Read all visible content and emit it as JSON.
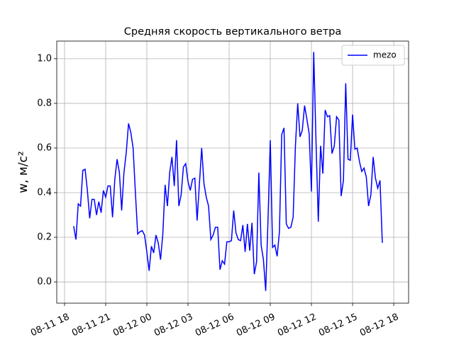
{
  "chart_data": {
    "type": "line",
    "title": "Средняя скорость вертикального ветра",
    "y_label": "w, м/с²",
    "x": [
      "08-11 18:40",
      "08-11 18:50",
      "08-11 19:00",
      "08-11 19:10",
      "08-11 19:20",
      "08-11 19:30",
      "08-11 19:40",
      "08-11 19:50",
      "08-11 20:00",
      "08-11 20:10",
      "08-11 20:20",
      "08-11 20:30",
      "08-11 20:40",
      "08-11 20:50",
      "08-11 21:00",
      "08-11 21:10",
      "08-11 21:20",
      "08-11 21:30",
      "08-11 21:40",
      "08-11 21:50",
      "08-11 22:00",
      "08-11 22:10",
      "08-11 22:20",
      "08-11 22:30",
      "08-11 22:40",
      "08-11 22:50",
      "08-11 23:00",
      "08-11 23:10",
      "08-11 23:20",
      "08-11 23:30",
      "08-11 23:40",
      "08-11 23:50",
      "08-12 00:00",
      "08-12 00:10",
      "08-12 00:20",
      "08-12 00:30",
      "08-12 00:40",
      "08-12 00:50",
      "08-12 01:00",
      "08-12 01:10",
      "08-12 01:20",
      "08-12 01:30",
      "08-12 01:40",
      "08-12 01:50",
      "08-12 02:00",
      "08-12 02:10",
      "08-12 02:20",
      "08-12 02:30",
      "08-12 02:40",
      "08-12 02:50",
      "08-12 03:00",
      "08-12 03:10",
      "08-12 03:20",
      "08-12 03:30",
      "08-12 03:40",
      "08-12 03:50",
      "08-12 04:00",
      "08-12 04:10",
      "08-12 04:20",
      "08-12 04:30",
      "08-12 04:40",
      "08-12 04:50",
      "08-12 05:00",
      "08-12 05:10",
      "08-12 05:20",
      "08-12 05:30",
      "08-12 05:40",
      "08-12 05:50",
      "08-12 06:00",
      "08-12 06:10",
      "08-12 06:20",
      "08-12 06:30",
      "08-12 06:40",
      "08-12 06:50",
      "08-12 07:00",
      "08-12 07:10",
      "08-12 07:20",
      "08-12 07:30",
      "08-12 07:40",
      "08-12 07:50",
      "08-12 08:00",
      "08-12 08:10",
      "08-12 08:20",
      "08-12 08:30",
      "08-12 08:40",
      "08-12 08:50",
      "08-12 09:00",
      "08-12 09:10",
      "08-12 09:20",
      "08-12 09:30",
      "08-12 09:40",
      "08-12 09:50",
      "08-12 10:00",
      "08-12 10:10",
      "08-12 10:20",
      "08-12 10:30",
      "08-12 10:40",
      "08-12 10:50",
      "08-12 11:00",
      "08-12 11:10",
      "08-12 11:20",
      "08-12 11:30",
      "08-12 11:40",
      "08-12 11:50",
      "08-12 12:00",
      "08-12 12:10",
      "08-12 12:20",
      "08-12 12:30",
      "08-12 12:40",
      "08-12 12:50",
      "08-12 13:00",
      "08-12 13:10",
      "08-12 13:20",
      "08-12 13:30",
      "08-12 13:40",
      "08-12 13:50",
      "08-12 14:00",
      "08-12 14:10",
      "08-12 14:20",
      "08-12 14:30",
      "08-12 14:40",
      "08-12 14:50",
      "08-12 15:00",
      "08-12 15:10",
      "08-12 15:20",
      "08-12 15:30",
      "08-12 15:40",
      "08-12 15:50",
      "08-12 16:00",
      "08-12 16:10",
      "08-12 16:20",
      "08-12 16:30",
      "08-12 16:40",
      "08-12 16:50",
      "08-12 17:00",
      "08-12 17:10"
    ],
    "series": [
      {
        "name": "mezo",
        "color": "#0000ff",
        "values": [
          0.25,
          0.19,
          0.35,
          0.34,
          0.5,
          0.505,
          0.41,
          0.285,
          0.37,
          0.37,
          0.3,
          0.36,
          0.31,
          0.41,
          0.38,
          0.43,
          0.43,
          0.29,
          0.46,
          0.55,
          0.49,
          0.32,
          0.49,
          0.58,
          0.71,
          0.67,
          0.6,
          0.4,
          0.215,
          0.225,
          0.23,
          0.21,
          0.135,
          0.05,
          0.16,
          0.13,
          0.21,
          0.175,
          0.1,
          0.215,
          0.435,
          0.34,
          0.49,
          0.56,
          0.43,
          0.635,
          0.34,
          0.39,
          0.515,
          0.53,
          0.45,
          0.41,
          0.46,
          0.465,
          0.275,
          0.44,
          0.6,
          0.44,
          0.38,
          0.34,
          0.19,
          0.21,
          0.245,
          0.245,
          0.055,
          0.095,
          0.08,
          0.18,
          0.18,
          0.185,
          0.32,
          0.22,
          0.19,
          0.185,
          0.255,
          0.135,
          0.26,
          0.14,
          0.265,
          0.035,
          0.09,
          0.49,
          0.165,
          0.1,
          -0.04,
          0.275,
          0.635,
          0.155,
          0.165,
          0.115,
          0.225,
          0.66,
          0.69,
          0.26,
          0.24,
          0.245,
          0.29,
          0.61,
          0.8,
          0.65,
          0.68,
          0.79,
          0.73,
          0.665,
          0.405,
          1.03,
          0.63,
          0.27,
          0.61,
          0.485,
          0.77,
          0.74,
          0.745,
          0.575,
          0.61,
          0.74,
          0.725,
          0.385,
          0.455,
          0.89,
          0.55,
          0.545,
          0.75,
          0.595,
          0.6,
          0.54,
          0.495,
          0.51,
          0.47,
          0.34,
          0.39,
          0.56,
          0.465,
          0.42,
          0.455,
          0.175
        ]
      }
    ],
    "xlim": [
      "08-11 17:26",
      "08-12 19:05"
    ],
    "xticks": [
      "08-11 18",
      "08-11 21",
      "08-12 00",
      "08-12 03",
      "08-12 06",
      "08-12 09",
      "08-12 12",
      "08-12 15",
      "08-12 18"
    ],
    "ylim": [
      -0.095,
      1.079
    ],
    "yticks": [
      {
        "value": 0,
        "label": "0.0"
      },
      0.2,
      0.4,
      0.6,
      0.8,
      {
        "value": 1,
        "label": "1.0"
      }
    ],
    "grid": true,
    "legend": "upper right"
  }
}
